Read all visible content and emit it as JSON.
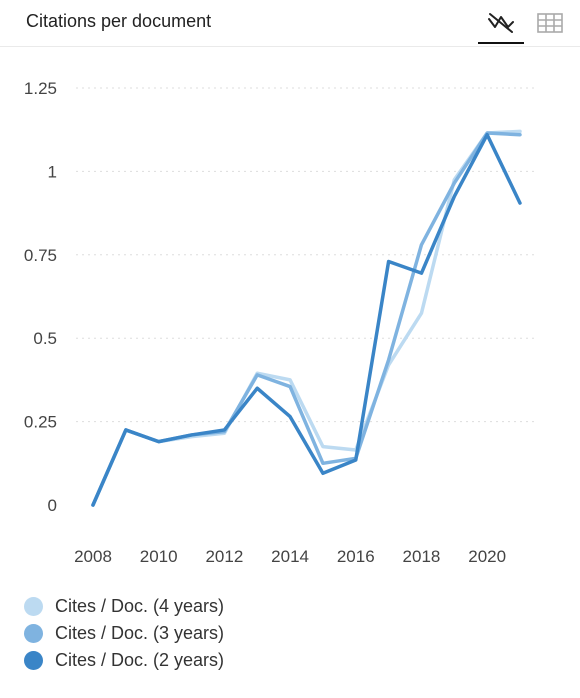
{
  "header": {
    "title": "Citations per document",
    "chart_view_icon": "line-chart-icon",
    "table_view_icon": "table-grid-icon"
  },
  "colors": {
    "series": [
      "#bcdaf1",
      "#7fb3e0",
      "#3a85c7"
    ],
    "grid": "#dddddd",
    "axis_text": "#444444"
  },
  "chart_data": {
    "type": "line",
    "title": "",
    "xlabel": "",
    "ylabel": "",
    "x": [
      2008,
      2009,
      2010,
      2011,
      2012,
      2013,
      2014,
      2015,
      2016,
      2017,
      2018,
      2019,
      2020,
      2021
    ],
    "x_ticks": [
      "2008",
      "2010",
      "2012",
      "2014",
      "2016",
      "2018",
      "2020"
    ],
    "y_ticks": [
      "0",
      "0.25",
      "0.5",
      "0.75",
      "1",
      "1.25"
    ],
    "ylim": [
      0,
      1.25
    ],
    "grid": "horizontal-dotted",
    "legend_position": "bottom-left",
    "series": [
      {
        "name": "Cites / Doc. (4 years)",
        "values": [
          0,
          0.225,
          0.19,
          0.205,
          0.215,
          0.395,
          0.375,
          0.175,
          0.165,
          0.42,
          0.575,
          0.975,
          1.115,
          1.12
        ]
      },
      {
        "name": "Cites / Doc. (3 years)",
        "values": [
          0,
          0.225,
          0.19,
          0.21,
          0.22,
          0.39,
          0.355,
          0.125,
          0.14,
          0.435,
          0.78,
          0.965,
          1.115,
          1.11
        ]
      },
      {
        "name": "Cites / Doc. (2 years)",
        "values": [
          0,
          0.225,
          0.19,
          0.21,
          0.225,
          0.35,
          0.265,
          0.095,
          0.135,
          0.73,
          0.695,
          0.925,
          1.11,
          0.905
        ]
      }
    ]
  }
}
